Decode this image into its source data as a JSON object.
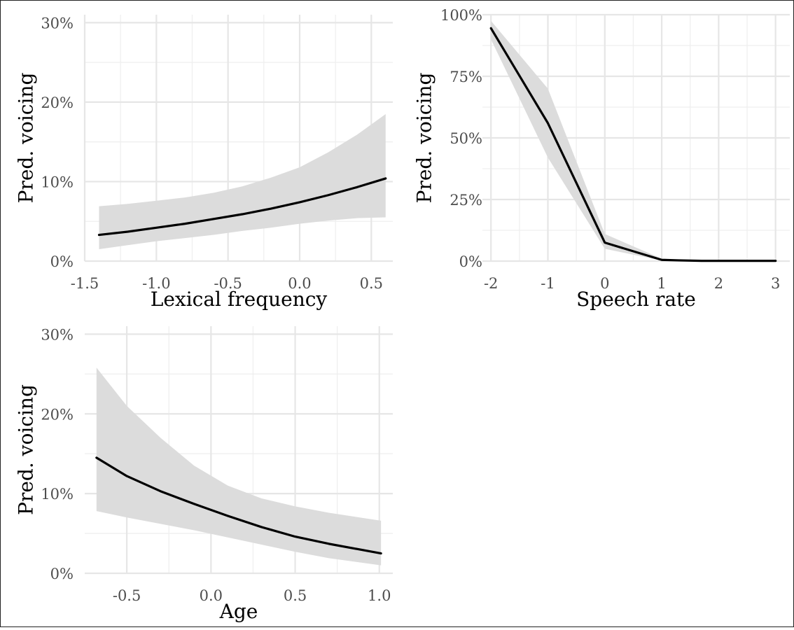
{
  "chart_data": [
    {
      "type": "line",
      "xlabel": "Lexical frequency",
      "ylabel": "Pred. voicing",
      "xlim": [
        -1.5,
        0.65
      ],
      "ylim": [
        0,
        0.31
      ],
      "x_ticks": [
        -1.5,
        -1.0,
        -0.5,
        0.0,
        0.5
      ],
      "x_tick_labels": [
        "-1.5",
        "-1.0",
        "-0.5",
        "0.0",
        "0.5"
      ],
      "y_ticks": [
        0,
        0.1,
        0.2,
        0.3
      ],
      "y_tick_labels": [
        "0%",
        "10%",
        "20%",
        "30%"
      ],
      "grid": true,
      "series": [
        {
          "x": [
            -1.4,
            -1.2,
            -1.0,
            -0.8,
            -0.6,
            -0.4,
            -0.2,
            0.0,
            0.2,
            0.4,
            0.6
          ],
          "y": [
            0.033,
            0.037,
            0.042,
            0.047,
            0.053,
            0.059,
            0.066,
            0.074,
            0.083,
            0.093,
            0.104
          ],
          "lower": [
            0.015,
            0.02,
            0.025,
            0.029,
            0.033,
            0.038,
            0.042,
            0.047,
            0.051,
            0.054,
            0.055
          ],
          "upper": [
            0.069,
            0.072,
            0.076,
            0.08,
            0.086,
            0.094,
            0.105,
            0.118,
            0.137,
            0.159,
            0.185
          ]
        }
      ]
    },
    {
      "type": "line",
      "xlabel": "Speech rate",
      "ylabel": "Pred. voicing",
      "xlim": [
        -2.15,
        3.25
      ],
      "ylim": [
        0,
        1.0
      ],
      "x_ticks": [
        -2,
        -1,
        0,
        1,
        2,
        3
      ],
      "x_tick_labels": [
        "-2",
        "-1",
        "0",
        "1",
        "2",
        "3"
      ],
      "y_ticks": [
        0,
        0.25,
        0.5,
        0.75,
        1.0
      ],
      "y_tick_labels": [
        "0%",
        "25%",
        "50%",
        "75%",
        "100%"
      ],
      "grid": true,
      "series": [
        {
          "x": [
            -2,
            -1,
            0,
            1,
            1.3,
            1.7,
            2,
            3
          ],
          "y": [
            0.945,
            0.56,
            0.075,
            0.005,
            0.003,
            0.001,
            0.001,
            0.001
          ],
          "lower": [
            0.9,
            0.42,
            0.05,
            0.002,
            0.001,
            0.0,
            0.0,
            0.0
          ],
          "upper": [
            0.975,
            0.7,
            0.11,
            0.01,
            0.006,
            0.003,
            0.002,
            0.002
          ]
        }
      ]
    },
    {
      "type": "line",
      "xlabel": "Age",
      "ylabel": "Pred. voicing",
      "xlim": [
        -0.75,
        1.08
      ],
      "ylim": [
        0,
        0.31
      ],
      "x_ticks": [
        -0.5,
        0.0,
        0.5,
        1.0
      ],
      "x_tick_labels": [
        "-0.5",
        "0.0",
        "0.5",
        "1.0"
      ],
      "y_ticks": [
        0,
        0.1,
        0.2,
        0.3
      ],
      "y_tick_labels": [
        "0%",
        "10%",
        "20%",
        "30%"
      ],
      "grid": true,
      "series": [
        {
          "x": [
            -0.68,
            -0.5,
            -0.3,
            -0.1,
            0.1,
            0.3,
            0.5,
            0.7,
            1.01
          ],
          "y": [
            0.145,
            0.122,
            0.103,
            0.087,
            0.072,
            0.058,
            0.046,
            0.037,
            0.025
          ],
          "lower": [
            0.078,
            0.07,
            0.062,
            0.054,
            0.045,
            0.036,
            0.027,
            0.019,
            0.01
          ],
          "upper": [
            0.258,
            0.21,
            0.17,
            0.135,
            0.11,
            0.094,
            0.084,
            0.076,
            0.066
          ]
        }
      ]
    }
  ]
}
